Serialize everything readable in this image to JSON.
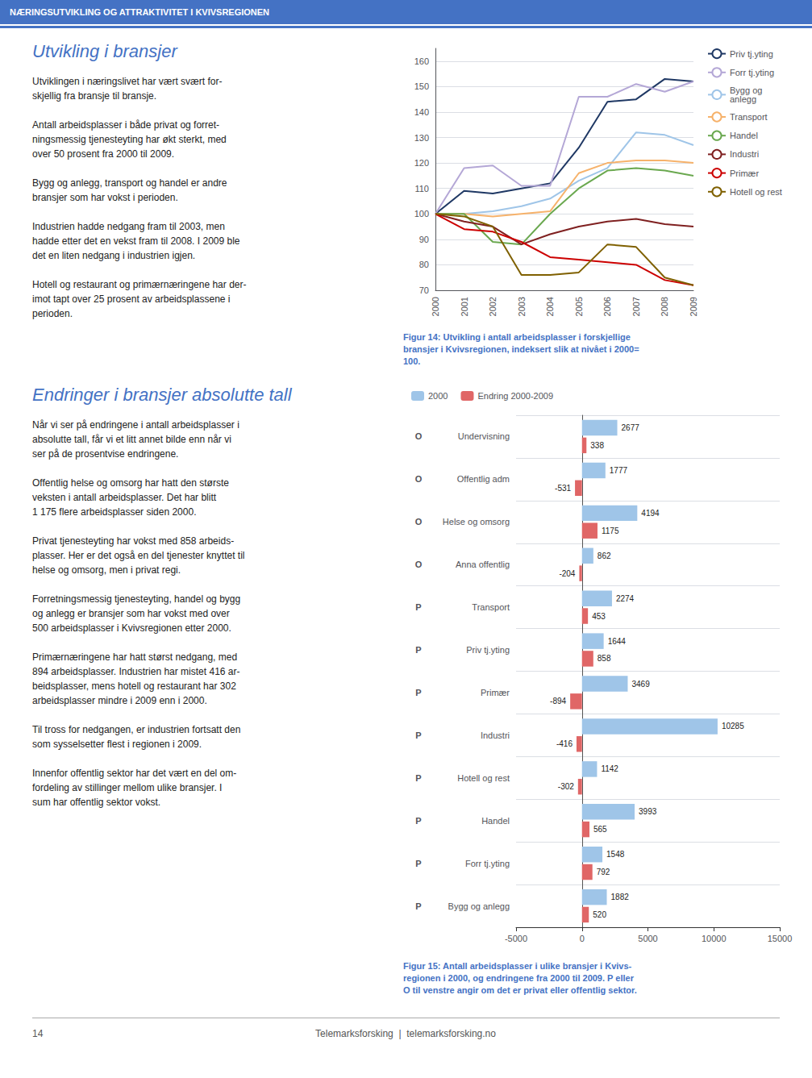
{
  "title": "NÆRINGSUTVIKLING OG ATTRAKTIVITET I KVIVSREGIONEN",
  "color": "#4472c4",
  "annotations": [
    "Utvikling i bransjer",
    "Utviklingen i næringslivet har vært svært for-\nskjellig fra bransje til bransje.\n\nAntall arbeidsplasser i både privat og forret-\nningsmessig tjenesteyting har økt sterkt, med\nover 50 prosent fra 2000 til 2009.\n\nBygg og anlegg, transport og handel er andre\nbransjer som har vokst i perioden.\n\nIndustrien hadde nedgang fram til 2003, men\nhadde etter det en vekst fram til 2008. I 2009 ble\ndet en liten nedgang i industrien igjen.\n\nHotell og restaurant og primærnæringene har der-\nimot tapt over 25 prosent av arbeidsplassene i\nperioden.",
    "Endringer i bransjer absolutte tall",
    "Når vi ser på endringene i antall arbeidsplasser i\nabsolutte tall, får vi et litt annet bilde enn når vi\nser på de prosentvise endringene.\n\nOffentlig helse og omsorg har hatt den største\nveksten i antall arbeidsplasser. Det har blitt\n1 175 flere arbeidsplasser siden 2000.\n\nPrivat tjenesteyting har vokst med 858 arbeids-\nplasser. Her er det også en del tjenester knyttet til\nhelse og omsorg, men i privat regi.\n\nForretningsmessig tjenesteyting, handel og bygg\nog anlegg er bransjer som har vokst med over\n500 arbeidsplasser i Kvivsregionen etter 2000.\n\nPrimærnæringene har hatt størst nedgang, med\n894 arbeidsplasser. Industrien har mistet 416 ar-\nbeidsplasser, mens hotell og restaurant har 302\narbeidsplasser mindre i 2009 enn i 2000.\n\nTil tross for nedgangen, er industrien fortsatt den\nsom sysselsetter flest i regionen i 2009.\n\nInnenfor offentlig sektor har det vært en del om-\nfordeling av stillinger mellom ulike bransjer. I\nsum har offentlig sektor vokst.",
    "14",
    "Telemarksforsking  |  telemarksforsking.no"
  ],
  "chart_data": [
    {
      "type": "line",
      "title": "Figur 14: Utvikling i antall arbeidsplasser i forskjellige\nbransjer i Kvivsregionen, indeksert slik at nivået i 2000=\n100.",
      "x": [
        2000,
        2001,
        2002,
        2003,
        2004,
        2005,
        2006,
        2007,
        2008,
        2009
      ],
      "xlim": [
        2000,
        2009
      ],
      "xticks": [
        2000,
        2001,
        2002,
        2003,
        2004,
        2005,
        2006,
        2007,
        2008,
        2009
      ],
      "ylim": [
        70,
        165
      ],
      "yticks": [
        70,
        80,
        90,
        100,
        110,
        120,
        130,
        140,
        150,
        160
      ],
      "grid": true,
      "legend": "right",
      "series": [
        {
          "name": "Priv tj.yting",
          "color": "#1f3864",
          "values": [
            100,
            109,
            108,
            110,
            112,
            126,
            144,
            145,
            153,
            152
          ]
        },
        {
          "name": "Forr tj.yting",
          "color": "#b4a7d6",
          "values": [
            100,
            118,
            119,
            111,
            111,
            146,
            146,
            151,
            148,
            152
          ]
        },
        {
          "name": "Bygg og\nanlegg",
          "color": "#9fc5e8",
          "values": [
            100,
            100,
            101,
            103,
            106,
            113,
            118,
            132,
            131,
            127
          ]
        },
        {
          "name": "Transport",
          "color": "#f6b26b",
          "values": [
            100,
            100,
            99,
            100,
            101,
            116,
            120,
            121,
            121,
            120
          ]
        },
        {
          "name": "Handel",
          "color": "#6aa84f",
          "values": [
            100,
            100,
            89,
            88,
            100,
            110,
            117,
            118,
            117,
            115
          ]
        },
        {
          "name": "Industri",
          "color": "#7f2020",
          "values": [
            100,
            97,
            95,
            88,
            92,
            95,
            97,
            98,
            96,
            95
          ]
        },
        {
          "name": "Primær",
          "color": "#cc0000",
          "values": [
            100,
            94,
            93,
            89,
            83,
            82,
            81,
            80,
            74,
            72
          ]
        },
        {
          "name": "Hotell og rest",
          "color": "#7f6000",
          "values": [
            100,
            99,
            95,
            76,
            76,
            77,
            88,
            87,
            75,
            72
          ]
        }
      ]
    },
    {
      "type": "bar",
      "orientation": "horizontal",
      "title": "Figur 15: Antall arbeidsplasser i ulike bransjer i Kvivs-\nregionen i 2000, og endringene fra 2000 til 2009. P eller\nO til venstre angir om det er privat eller offentlig sektor.",
      "categories": [
        "Undervisning",
        "Offentlig adm",
        "Helse og omsorg",
        "Anna offentlig",
        "Transport",
        "Priv tj.yting",
        "Primær",
        "Industri",
        "Hotell og rest",
        "Handel",
        "Forr tj.yting",
        "Bygg og anlegg"
      ],
      "sector_labels": [
        "O",
        "O",
        "O",
        "O",
        "P",
        "P",
        "P",
        "P",
        "P",
        "P",
        "P",
        "P"
      ],
      "xlim": [
        -5000,
        15000
      ],
      "xticks": [
        -5000,
        0,
        5000,
        10000,
        15000
      ],
      "grid": true,
      "legend": "upper left",
      "data_labels": true,
      "series": [
        {
          "name": "2000",
          "color": "#9fc5e8",
          "values": [
            2677,
            1777,
            4194,
            862,
            2274,
            1644,
            3469,
            10285,
            1142,
            3993,
            1548,
            1882
          ]
        },
        {
          "name": "Endring 2000-2009",
          "color": "#e06666",
          "values": [
            338,
            -531,
            1175,
            -204,
            453,
            858,
            -894,
            -416,
            -302,
            565,
            792,
            520
          ]
        }
      ]
    }
  ]
}
